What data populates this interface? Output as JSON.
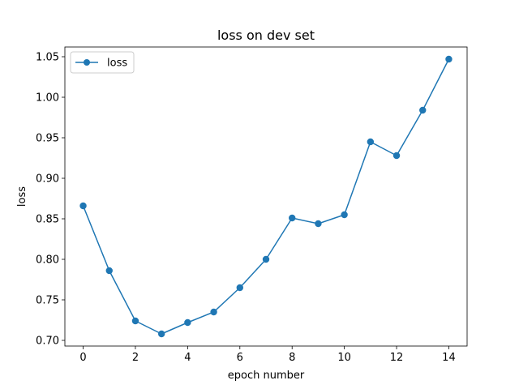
{
  "chart_data": {
    "type": "line",
    "title": "loss on dev set",
    "xlabel": "epoch number",
    "ylabel": "loss",
    "xlim": [
      -0.7,
      14.7
    ],
    "ylim": [
      0.693,
      1.062
    ],
    "xticks": [
      0,
      2,
      4,
      6,
      8,
      10,
      12,
      14
    ],
    "yticks": [
      0.7,
      0.75,
      0.8,
      0.85,
      0.9,
      0.95,
      1.0,
      1.05
    ],
    "yticks_labels": [
      "0.70",
      "0.75",
      "0.80",
      "0.85",
      "0.90",
      "0.95",
      "1.00",
      "1.05"
    ],
    "grid": false,
    "legend": {
      "position": "top-left"
    },
    "series": [
      {
        "name": "loss",
        "color": "#1f77b4",
        "marker": "circle",
        "x": [
          0,
          1,
          2,
          3,
          4,
          5,
          6,
          7,
          8,
          9,
          10,
          11,
          12,
          13,
          14
        ],
        "y": [
          0.866,
          0.786,
          0.724,
          0.708,
          0.722,
          0.735,
          0.765,
          0.8,
          0.851,
          0.844,
          0.855,
          0.945,
          0.928,
          0.984,
          1.047
        ]
      }
    ]
  }
}
